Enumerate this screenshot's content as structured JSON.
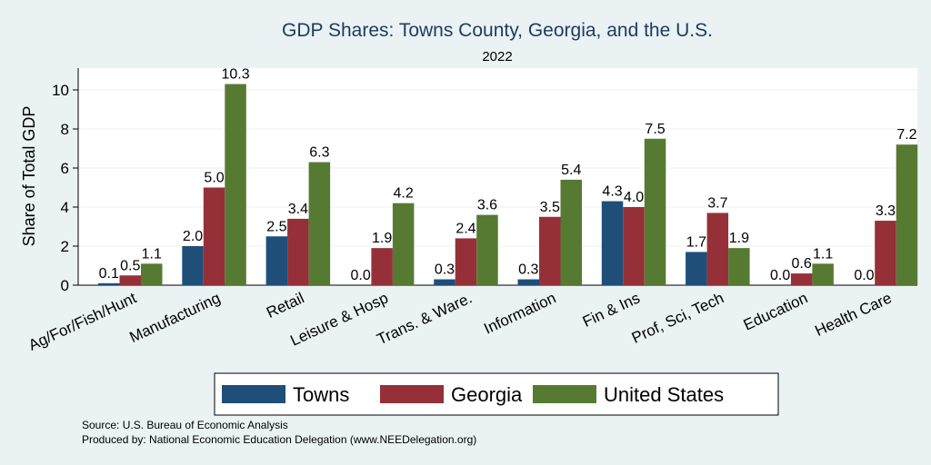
{
  "chart_data": {
    "type": "bar",
    "title": "GDP Shares: Towns County, Georgia, and the U.S.",
    "subtitle": "2022",
    "ylabel": "Share of Total GDP",
    "xlabel": "",
    "ylim": [
      0,
      11
    ],
    "yticks": [
      "0",
      "2",
      "4",
      "6",
      "8",
      "10"
    ],
    "grid": true,
    "legend_position": "bottom",
    "categories": [
      "Ag/For/Fish/Hunt",
      "Manufacturing",
      "Retail",
      "Leisure & Hosp",
      "Trans. & Ware.",
      "Information",
      "Fin & Ins",
      "Prof, Sci, Tech",
      "Education",
      "Health Care"
    ],
    "series": [
      {
        "name": "Towns",
        "color": "#1f4e79",
        "values": [
          0.1,
          2.0,
          2.5,
          0.0,
          0.3,
          0.3,
          4.3,
          1.7,
          0.0,
          0.0
        ],
        "labels": [
          "0.1",
          "2.0",
          "2.5",
          "0.0",
          "0.3",
          "0.3",
          "4.3",
          "1.7",
          "0.0",
          "0.0"
        ]
      },
      {
        "name": "Georgia",
        "color": "#953039",
        "values": [
          0.5,
          5.0,
          3.4,
          1.9,
          2.4,
          3.5,
          4.0,
          3.7,
          0.6,
          3.3
        ],
        "labels": [
          "0.5",
          "5.0",
          "3.4",
          "1.9",
          "2.4",
          "3.5",
          "4.0",
          "3.7",
          "0.6",
          "3.3"
        ]
      },
      {
        "name": "United States",
        "color": "#567a32",
        "values": [
          1.1,
          10.3,
          6.3,
          4.2,
          3.6,
          5.4,
          7.5,
          1.9,
          1.1,
          7.2
        ],
        "labels": [
          "1.1",
          "10.3",
          "6.3",
          "4.2",
          "3.6",
          "5.4",
          "7.5",
          "1.9",
          "1.1",
          "7.2"
        ]
      }
    ]
  },
  "source_line": "Source: U.S. Bureau of Economic Analysis",
  "produced_line": "Produced by: National Economic Education Delegation (www.NEEDelegation.org)"
}
